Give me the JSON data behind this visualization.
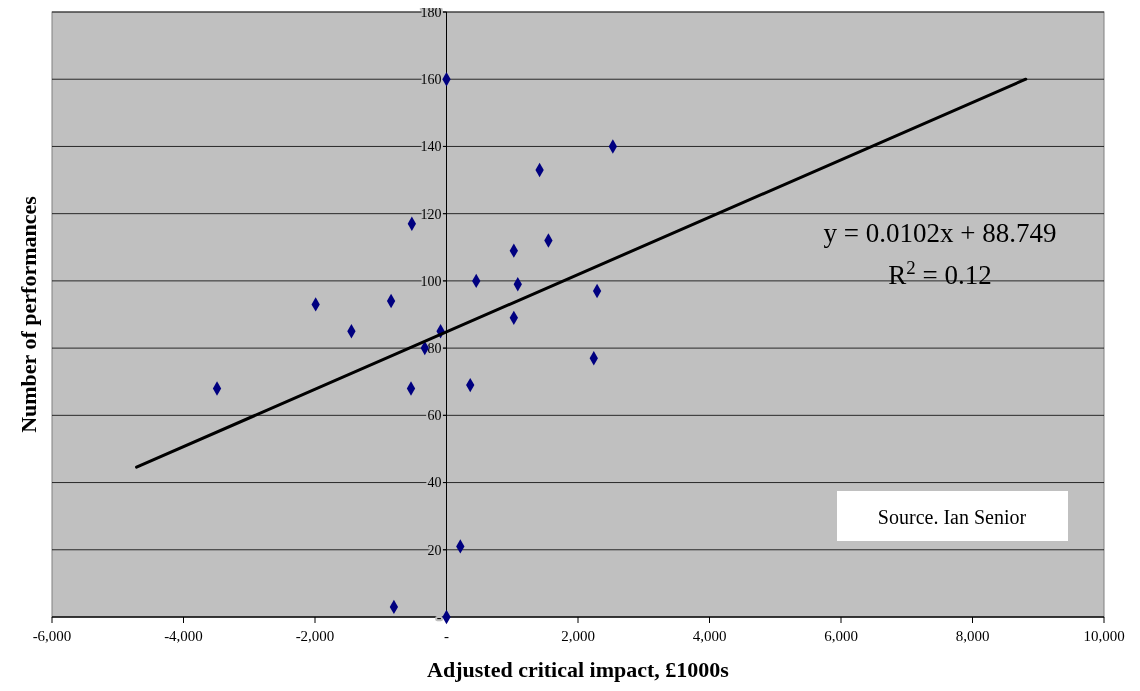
{
  "chart_data": {
    "type": "scatter",
    "xlabel": "Adjusted critical impact, £1000s",
    "ylabel": "Number of performances",
    "series": [
      {
        "color": "#000080",
        "marker": "diamond",
        "x": [
          0,
          2530,
          1416,
          -527,
          1550,
          1024,
          452,
          1084,
          2290,
          -1990,
          -843,
          -1446,
          -90,
          -330,
          1024,
          2240,
          -3490,
          -540,
          361,
          210,
          -800,
          0
        ],
        "values": [
          160,
          140,
          133,
          117,
          112,
          109,
          100,
          99,
          97,
          93,
          94,
          85,
          85,
          80,
          89,
          77,
          68,
          68,
          69,
          21,
          3,
          0
        ]
      },
      {
        "type": "line",
        "color": "#000000",
        "marker": "none",
        "line_style": "solid",
        "x": [
          -4714,
          8810
        ],
        "values": [
          44.6,
          160
        ]
      }
    ],
    "xlim": [
      -6000,
      10000
    ],
    "ylim": [
      0,
      180
    ],
    "xticks": [
      {
        "value": -6000,
        "label": "-6,000"
      },
      {
        "value": -4000,
        "label": "-4,000"
      },
      {
        "value": -2000,
        "label": "-2,000"
      },
      {
        "value": 0,
        "label": "-"
      },
      {
        "value": 2000,
        "label": "2,000"
      },
      {
        "value": 4000,
        "label": "4,000"
      },
      {
        "value": 6000,
        "label": "6,000"
      },
      {
        "value": 8000,
        "label": "8,000"
      },
      {
        "value": 10000,
        "label": "10,000"
      }
    ],
    "yticks": [
      {
        "value": 0,
        "label": "-"
      },
      20,
      40,
      60,
      80,
      100,
      120,
      140,
      160,
      180
    ],
    "grid": "y",
    "annotations": [
      "y = 0.0102x + 88.749",
      "R$^{2}$ = 0.12",
      "Source. Ian Senior"
    ]
  }
}
